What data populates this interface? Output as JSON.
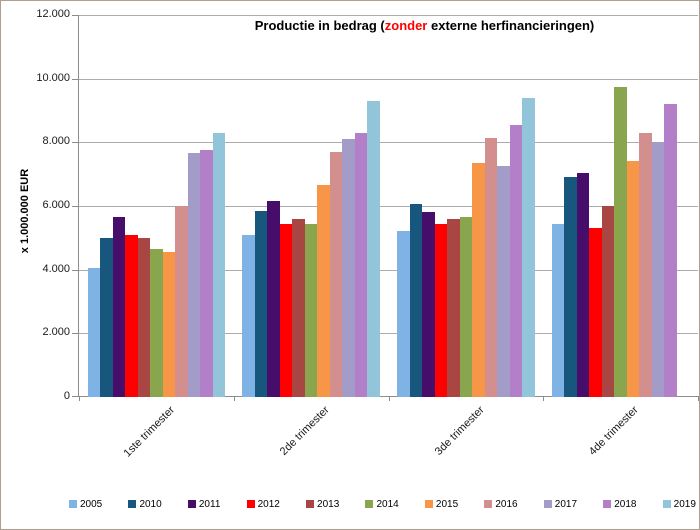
{
  "frame": {
    "background": "#FFFFFF",
    "border_color": "#AE9E90"
  },
  "title": {
    "prefix": "Productie in bedrag (",
    "highlight": "zonder",
    "suffix": " externe herfinancieringen)",
    "highlight_color": "#FF0000",
    "text_color": "#000000"
  },
  "axes": {
    "gridline_color": "#ACACAC",
    "axis_color": "#8C8C8C",
    "tick_label_color": "#1A1A1A"
  },
  "chart_data": {
    "type": "bar",
    "title": "Productie in bedrag (zonder externe herfinancieringen)",
    "ylabel": "x 1.000.000  EUR",
    "xlabel": "",
    "ylim": [
      0,
      12000
    ],
    "ytick_step": 2000,
    "grid": true,
    "legend_position": "bottom",
    "categories": [
      "1ste trimester",
      "2de trimester",
      "3de trimester",
      "4de trimester"
    ],
    "ytick_values": [
      0,
      2000,
      4000,
      6000,
      8000,
      10000,
      12000
    ],
    "ytick_labels": [
      "0",
      "2.000",
      "4.000",
      "6.000",
      "8.000",
      "10.000",
      "12.000"
    ],
    "series": [
      {
        "name": "2005",
        "color": "#7FB2E5",
        "values": [
          4050,
          5100,
          5200,
          5450
        ]
      },
      {
        "name": "2010",
        "color": "#17567D",
        "values": [
          5000,
          5850,
          6050,
          6900
        ]
      },
      {
        "name": "2011",
        "color": "#470D6B",
        "values": [
          5650,
          6150,
          5800,
          7050
        ]
      },
      {
        "name": "2012",
        "color": "#FE0000",
        "values": [
          5100,
          5450,
          5450,
          5300
        ]
      },
      {
        "name": "2013",
        "color": "#A94643",
        "values": [
          5000,
          5600,
          5600,
          6000
        ]
      },
      {
        "name": "2014",
        "color": "#89A54E",
        "values": [
          4650,
          5450,
          5650,
          9750
        ]
      },
      {
        "name": "2015",
        "color": "#F79646",
        "values": [
          4550,
          6650,
          7350,
          7400
        ]
      },
      {
        "name": "2016",
        "color": "#D38F8D",
        "values": [
          6000,
          7700,
          8150,
          8300
        ]
      },
      {
        "name": "2017",
        "color": "#A49CC8",
        "values": [
          7650,
          8100,
          7250,
          8000
        ]
      },
      {
        "name": "2018",
        "color": "#B27FC8",
        "values": [
          7750,
          8300,
          8550,
          9200
        ]
      },
      {
        "name": "2019",
        "color": "#92C5D9",
        "values": [
          8300,
          9300,
          9400,
          null
        ]
      }
    ]
  }
}
